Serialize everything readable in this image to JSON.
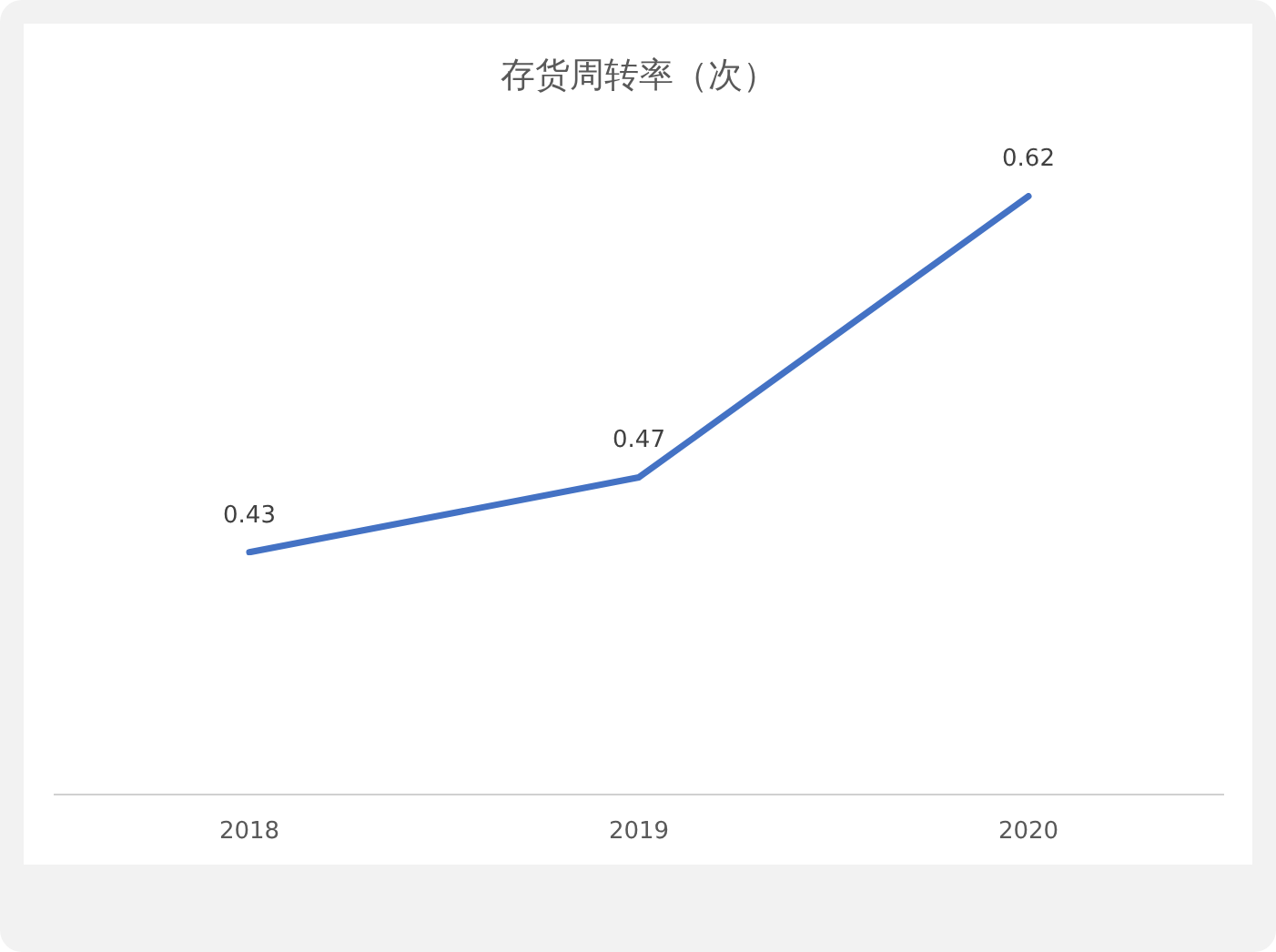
{
  "chart_data": {
    "type": "line",
    "title": "存货周转率（次）",
    "categories": [
      "2018",
      "2019",
      "2020"
    ],
    "values": [
      0.43,
      0.47,
      0.62
    ],
    "color": "#4472c4",
    "tick_labels": "x",
    "marker": "none",
    "data_labels": true
  }
}
